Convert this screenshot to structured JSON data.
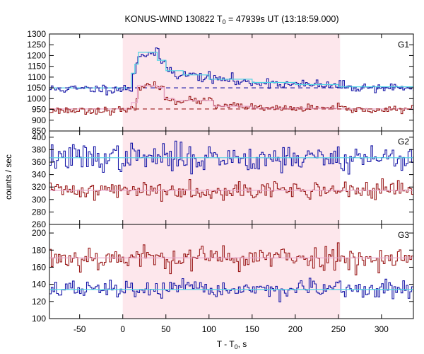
{
  "chart_data": {
    "type": "line",
    "title_parts": {
      "prefix": "KONUS-WIND 130822 T",
      "subscript": "0",
      "suffix": " = 47939s UT (13:18:59.000)"
    },
    "xlabel_parts": {
      "prefix": "T - T",
      "subscript": "0",
      "suffix": ", s"
    },
    "ylabel": "counts / sec",
    "xlim": [
      -85,
      337
    ],
    "xticks": [
      -50,
      0,
      50,
      100,
      150,
      200,
      250,
      300
    ],
    "shaded_interval": [
      0,
      252
    ],
    "colors": {
      "blue": "#1a1aa8",
      "red": "#9b1c1c",
      "cyan": "#4fd4e4",
      "pink": "#eaa8cc",
      "shade": "#fde7ec"
    },
    "panels": [
      {
        "label": "G1",
        "ylim": [
          850,
          1300
        ],
        "yticks": [
          850,
          900,
          950,
          1000,
          1050,
          1100,
          1150,
          1200,
          1250,
          1300
        ],
        "series": [
          {
            "color": "blue",
            "base": 1045,
            "noise": 11,
            "seed": 11,
            "segments": [
              [
                -85,
                1045
              ],
              [
                8,
                1050
              ],
              [
                11,
                1120
              ],
              [
                14,
                1165
              ],
              [
                17,
                1205
              ],
              [
                30,
                1210
              ],
              [
                40,
                1175
              ],
              [
                50,
                1135
              ],
              [
                60,
                1110
              ],
              [
                85,
                1100
              ],
              [
                100,
                1090
              ],
              [
                130,
                1075
              ],
              [
                180,
                1065
              ],
              [
                230,
                1060
              ],
              [
                260,
                1052
              ]
            ],
            "fit": {
              "color": "cyan",
              "baseline": 1050,
              "segments": [
                [
                  10,
                  1118
                ],
                [
                  14,
                  1160
                ],
                [
                  18,
                  1215
                ],
                [
                  40,
                  1178
                ],
                [
                  50,
                  1130
                ],
                [
                  70,
                  1110
                ],
                [
                  100,
                  1090
                ],
                [
                  150,
                  1075
                ],
                [
                  200,
                  1065
                ],
                [
                  250,
                  1055
                ]
              ]
            },
            "background": 1050
          },
          {
            "color": "red",
            "base": 945,
            "noise": 8,
            "seed": 23,
            "segments": [
              [
                -85,
                945
              ],
              [
                10,
                952
              ],
              [
                14,
                985
              ],
              [
                17,
                1060
              ],
              [
                40,
                1050
              ],
              [
                48,
                1000
              ],
              [
                60,
                990
              ],
              [
                95,
                990
              ],
              [
                105,
                965
              ],
              [
                150,
                955
              ],
              [
                260,
                948
              ]
            ],
            "fit": {
              "color": "pink",
              "baseline": 952,
              "segments": [
                [
                  10,
                  982
                ],
                [
                  17,
                  1060
                ],
                [
                  40,
                  1052
                ],
                [
                  48,
                  1000
                ],
                [
                  60,
                  992
                ],
                [
                  100,
                  990
                ],
                [
                  105,
                  965
                ],
                [
                  150,
                  955
                ],
                [
                  250,
                  952
                ]
              ]
            },
            "background": 952
          }
        ]
      },
      {
        "label": "G2",
        "ylim": [
          260,
          410
        ],
        "yticks": [
          260,
          280,
          300,
          320,
          340,
          360,
          380,
          400
        ],
        "series": [
          {
            "color": "blue",
            "base": 367,
            "noise": 11,
            "seed": 37,
            "segments": [
              [
                -85,
                367
              ]
            ],
            "fit": {
              "color": "cyan",
              "baseline": 367,
              "segments": [
                [
                  -85,
                  367
                ]
              ]
            }
          },
          {
            "color": "red",
            "base": 315,
            "noise": 7,
            "seed": 41,
            "segments": [
              [
                -85,
                315
              ]
            ],
            "fit": {
              "color": "pink",
              "baseline": 315,
              "segments": [
                [
                  -85,
                  315
                ]
              ]
            }
          }
        ]
      },
      {
        "label": "G3",
        "ylim": [
          100,
          210
        ],
        "yticks": [
          100,
          120,
          140,
          160,
          180,
          200
        ],
        "series": [
          {
            "color": "red",
            "base": 171,
            "noise": 7,
            "seed": 53,
            "segments": [
              [
                -85,
                171
              ]
            ],
            "fit": {
              "color": "pink",
              "baseline": 171,
              "segments": [
                [
                  -85,
                  171
                ]
              ]
            }
          },
          {
            "color": "blue",
            "base": 134,
            "noise": 5,
            "seed": 67,
            "segments": [
              [
                -85,
                134
              ]
            ],
            "fit": {
              "color": "cyan",
              "baseline": 134,
              "segments": [
                [
                  -85,
                  134
                ]
              ]
            }
          }
        ]
      }
    ]
  }
}
